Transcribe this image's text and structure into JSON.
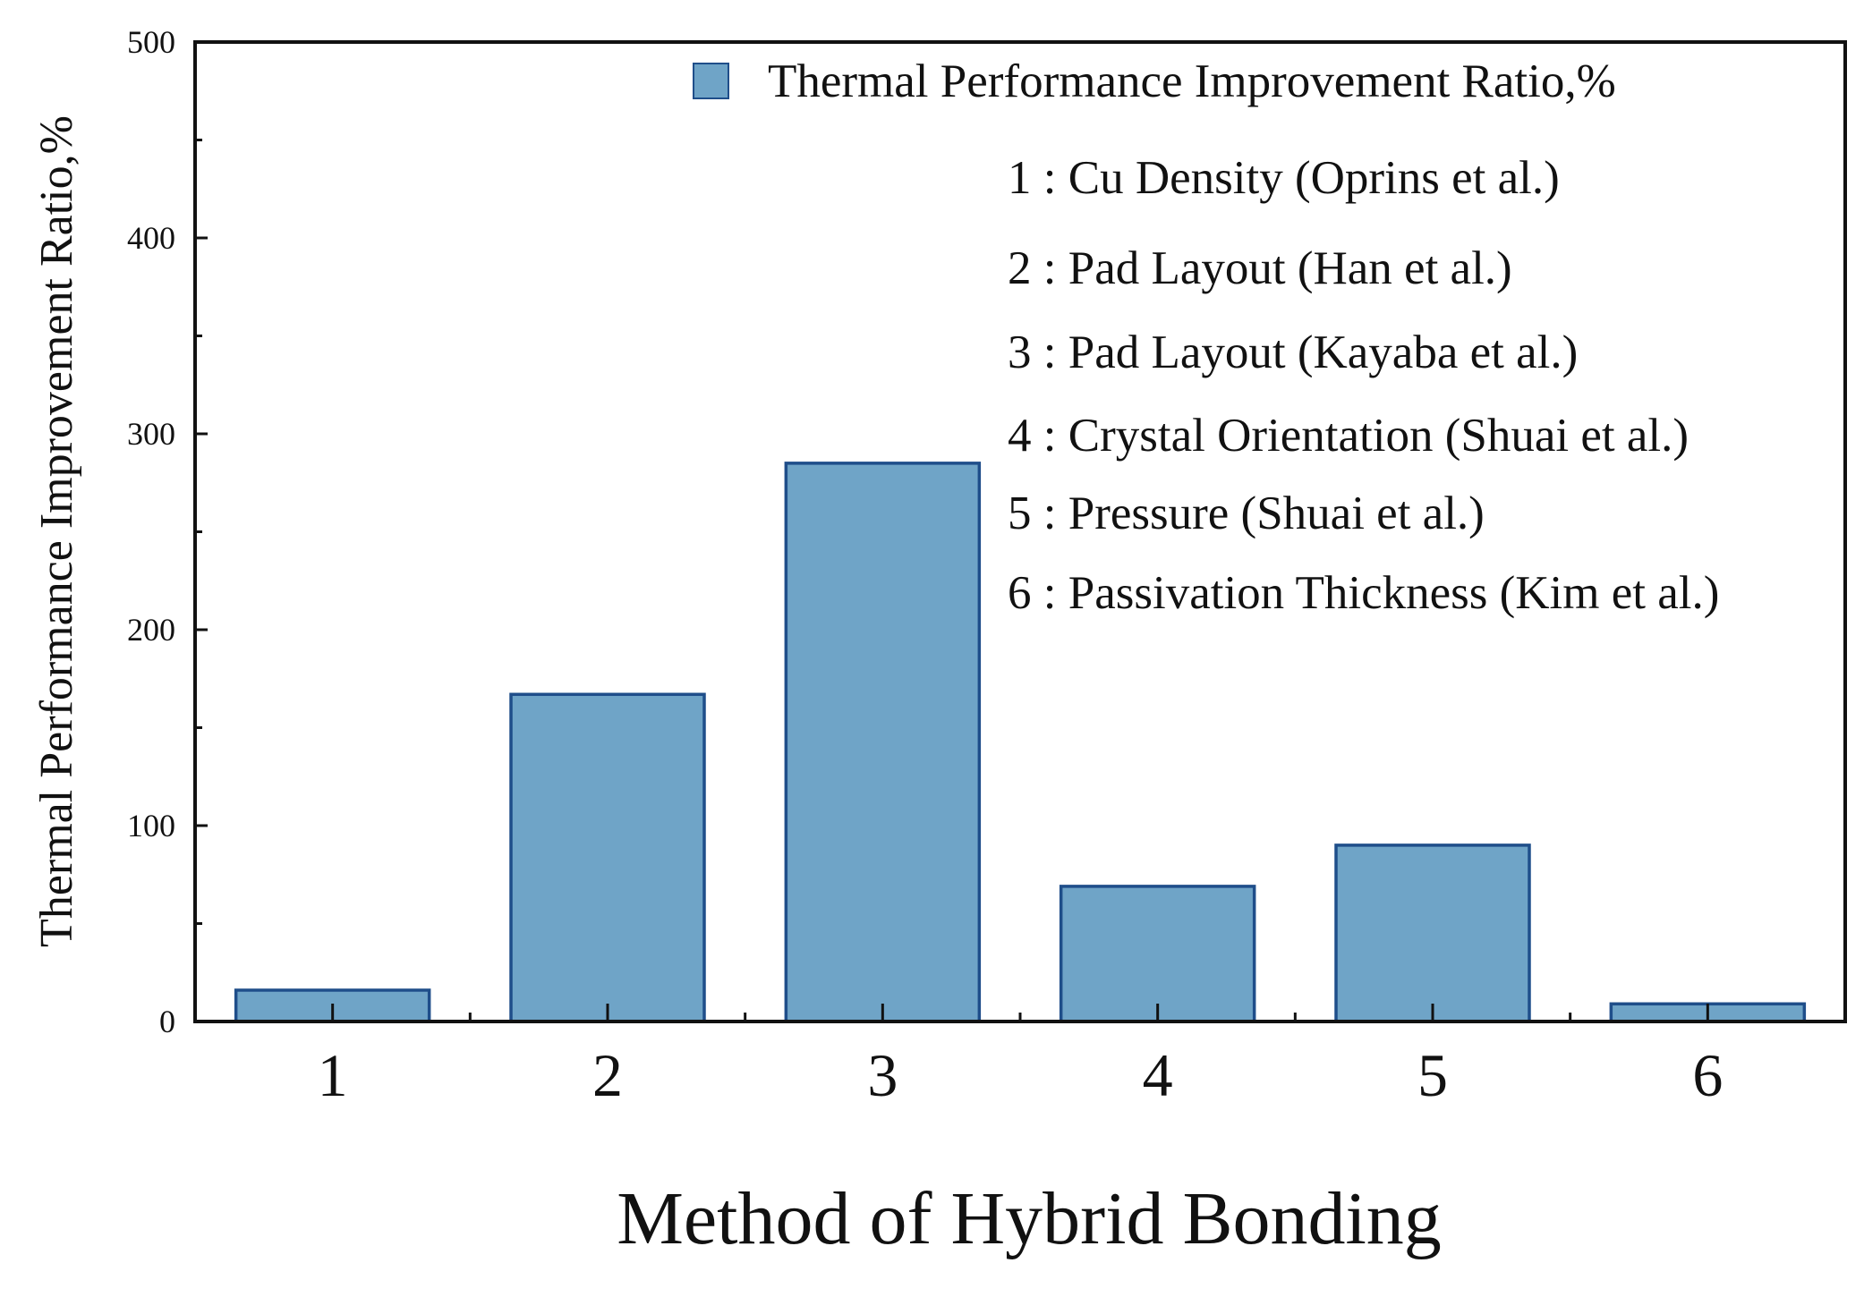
{
  "chart_data": {
    "type": "bar",
    "categories": [
      "1",
      "2",
      "3",
      "4",
      "5",
      "6"
    ],
    "series": [
      {
        "name": "Thermal Performance Improvement Ratio,%",
        "values": [
          16,
          167,
          285,
          69,
          90,
          9
        ]
      }
    ],
    "xlabel": "Method of Hybrid Bonding",
    "ylabel": "Thermal Performance Improvement Ratio,%",
    "ylim": [
      0,
      500
    ],
    "yticks": [
      0,
      100,
      200,
      300,
      400,
      500
    ],
    "grid": false,
    "legend_position": "top-right",
    "annotations": [
      "1 : Cu Density (Oprins et al.)",
      "2 : Pad Layout (Han et al.)",
      "3 : Pad Layout (Kayaba et al.)",
      "4 : Crystal Orientation (Shuai et al.)",
      "5 : Pressure (Shuai et al.)",
      "6 : Passivation Thickness (Kim et al.)"
    ],
    "colors": {
      "bar_fill": "#6fa4c7",
      "bar_edge": "#1f4e8a",
      "axis": "#111111"
    }
  }
}
